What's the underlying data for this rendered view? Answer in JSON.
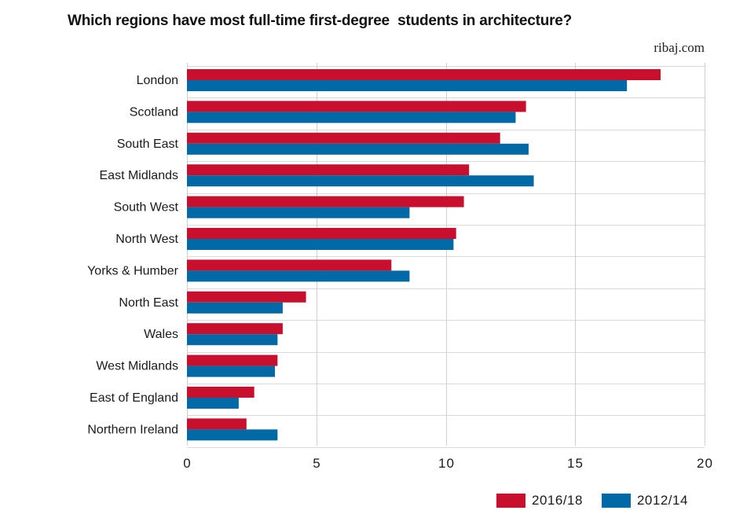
{
  "chart_data": {
    "type": "bar",
    "orientation": "horizontal",
    "title": "Which regions have most full-time first-degree  students in architecture?",
    "source": "ribaj.com",
    "categories": [
      "London",
      "Scotland",
      "South East",
      "East Midlands",
      "South West",
      "North West",
      "Yorks & Humber",
      "North East",
      "Wales",
      "West Midlands",
      "East of England",
      "Northern Ireland"
    ],
    "series": [
      {
        "name": "2016/18",
        "color": "#c8102e",
        "values": [
          18.3,
          13.1,
          12.1,
          10.9,
          10.7,
          10.4,
          7.9,
          4.6,
          3.7,
          3.5,
          2.6,
          2.3
        ]
      },
      {
        "name": "2012/14",
        "color": "#0069a6",
        "values": [
          17.0,
          12.7,
          13.2,
          13.4,
          8.6,
          10.3,
          8.6,
          3.7,
          3.5,
          3.4,
          2.0,
          3.5
        ]
      }
    ],
    "xlim": [
      0,
      20
    ],
    "xticks": [
      "0",
      "5",
      "10",
      "15",
      "20"
    ],
    "grid": true,
    "legend_position": "bottom-right"
  }
}
